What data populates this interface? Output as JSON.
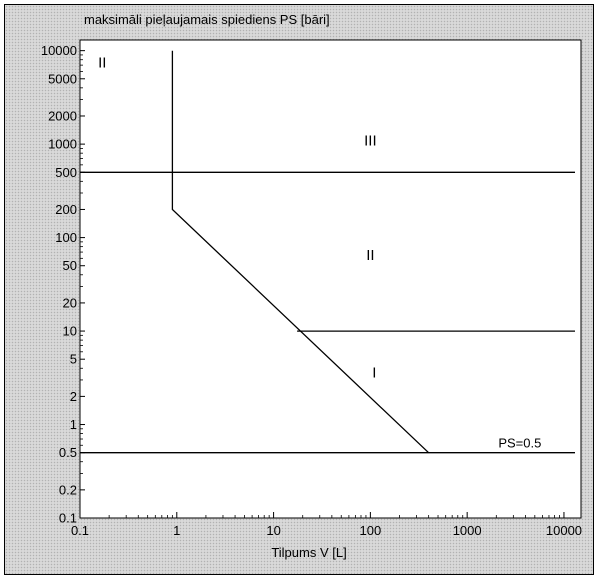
{
  "chart_data": {
    "type": "line",
    "title": "maksimāli pieļaujamais spiediens PS [bāri]",
    "xlabel": "Tilpums V [L]",
    "ylabel": "",
    "x_scale": "log",
    "y_scale": "log",
    "xlim": [
      0.1,
      15000
    ],
    "ylim": [
      0.1,
      13000
    ],
    "x_ticks": [
      0.1,
      1,
      10,
      100,
      1000,
      10000
    ],
    "x_tick_labels": [
      "0.1",
      "1",
      "10",
      "100",
      "1000",
      "10000"
    ],
    "y_ticks": [
      0.1,
      0.2,
      0.5,
      1,
      2,
      5,
      10,
      20,
      50,
      100,
      200,
      500,
      1000,
      2000,
      5000,
      10000
    ],
    "y_tick_labels": [
      "0.1",
      "0.2",
      "0.5",
      "1",
      "2",
      "5",
      "10",
      "20",
      "50",
      "100",
      "200",
      "500",
      "1000",
      "2000",
      "5000",
      "10000"
    ],
    "grid": false,
    "series": [
      {
        "points": [
          [
            0.1,
            500
          ],
          [
            13000,
            500
          ]
        ]
      },
      {
        "points": [
          [
            0.9,
            10000
          ],
          [
            0.9,
            200
          ],
          [
            400,
            0.5
          ]
        ]
      },
      {
        "points": [
          [
            17.5,
            10
          ],
          [
            13000,
            10
          ]
        ]
      },
      {
        "points": [
          [
            0.1,
            0.5
          ],
          [
            13000,
            0.5
          ]
        ]
      }
    ],
    "region_labels": [
      {
        "text": "II",
        "x": 0.17,
        "y": 7500
      },
      {
        "text": "III",
        "x": 100,
        "y": 1100
      },
      {
        "text": "II",
        "x": 100,
        "y": 65
      },
      {
        "text": "I",
        "x": 110,
        "y": 3.6
      }
    ],
    "annotations": [
      {
        "text": "PS=0.5",
        "x": 3500,
        "y": 0.5
      }
    ]
  }
}
